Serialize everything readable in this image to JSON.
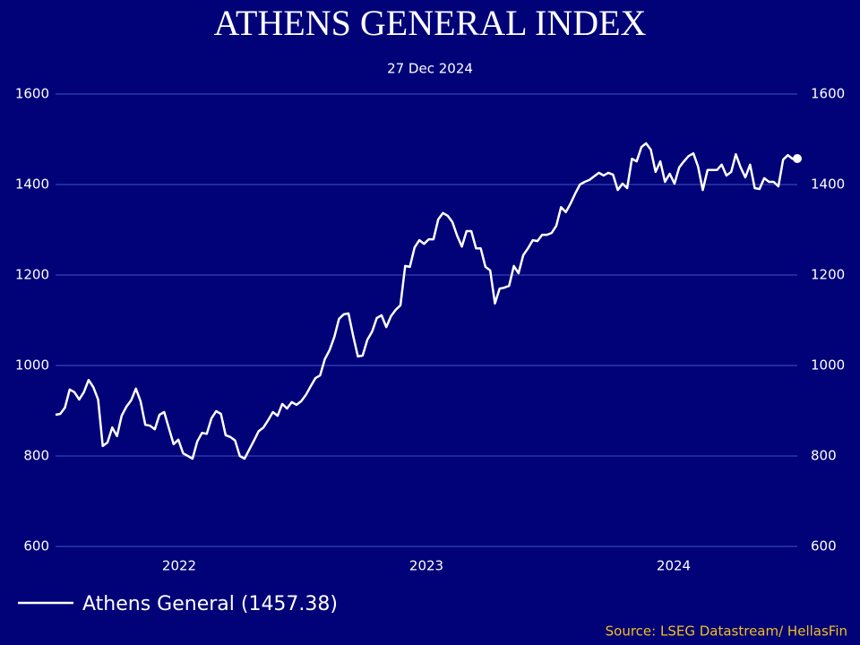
{
  "chart_data": {
    "type": "line",
    "title": "ATHENS GENERAL INDEX",
    "subtitle": "27 Dec 2024",
    "source": "Source: LSEG Datastream/ HellasFin",
    "xlim": [
      2022,
      2025
    ],
    "xticks": [
      {
        "value": 2022.5,
        "label": "2022"
      },
      {
        "value": 2023.5,
        "label": "2023"
      },
      {
        "value": 2024.5,
        "label": "2024"
      }
    ],
    "ylim": [
      600,
      1600
    ],
    "yticks": [
      600,
      800,
      1000,
      1200,
      1400,
      1600
    ],
    "y2lim": [
      600,
      1600
    ],
    "y2ticks": [
      600,
      800,
      1000,
      1200,
      1400,
      1600
    ],
    "grid": true,
    "legend": "bottom-left",
    "series": [
      {
        "name": "Athens General (1457.38)",
        "color": "#ffffff",
        "values": [
          891,
          893,
          907,
          947,
          941,
          925,
          941,
          968,
          952,
          925,
          822,
          830,
          863,
          844,
          889,
          909,
          923,
          949,
          921,
          869,
          867,
          859,
          891,
          897,
          861,
          826,
          836,
          806,
          800,
          794,
          832,
          851,
          849,
          883,
          899,
          893,
          846,
          842,
          834,
          800,
          794,
          814,
          834,
          855,
          863,
          879,
          897,
          889,
          915,
          905,
          919,
          913,
          921,
          935,
          954,
          972,
          978,
          1014,
          1034,
          1063,
          1103,
          1113,
          1115,
          1065,
          1020,
          1022,
          1057,
          1075,
          1105,
          1111,
          1085,
          1109,
          1123,
          1133,
          1220,
          1218,
          1261,
          1277,
          1269,
          1279,
          1279,
          1323,
          1337,
          1331,
          1317,
          1287,
          1263,
          1297,
          1297,
          1259,
          1259,
          1218,
          1210,
          1137,
          1170,
          1172,
          1176,
          1220,
          1204,
          1244,
          1259,
          1277,
          1275,
          1289,
          1289,
          1293,
          1309,
          1350,
          1339,
          1358,
          1380,
          1400,
          1406,
          1410,
          1418,
          1426,
          1420,
          1426,
          1422,
          1388,
          1402,
          1392,
          1457,
          1451,
          1483,
          1491,
          1477,
          1428,
          1451,
          1406,
          1424,
          1402,
          1438,
          1451,
          1463,
          1469,
          1440,
          1388,
          1432,
          1432,
          1432,
          1444,
          1420,
          1428,
          1467,
          1438,
          1416,
          1444,
          1392,
          1390,
          1414,
          1406,
          1406,
          1396,
          1455,
          1465,
          1457,
          1457.38
        ]
      }
    ]
  }
}
